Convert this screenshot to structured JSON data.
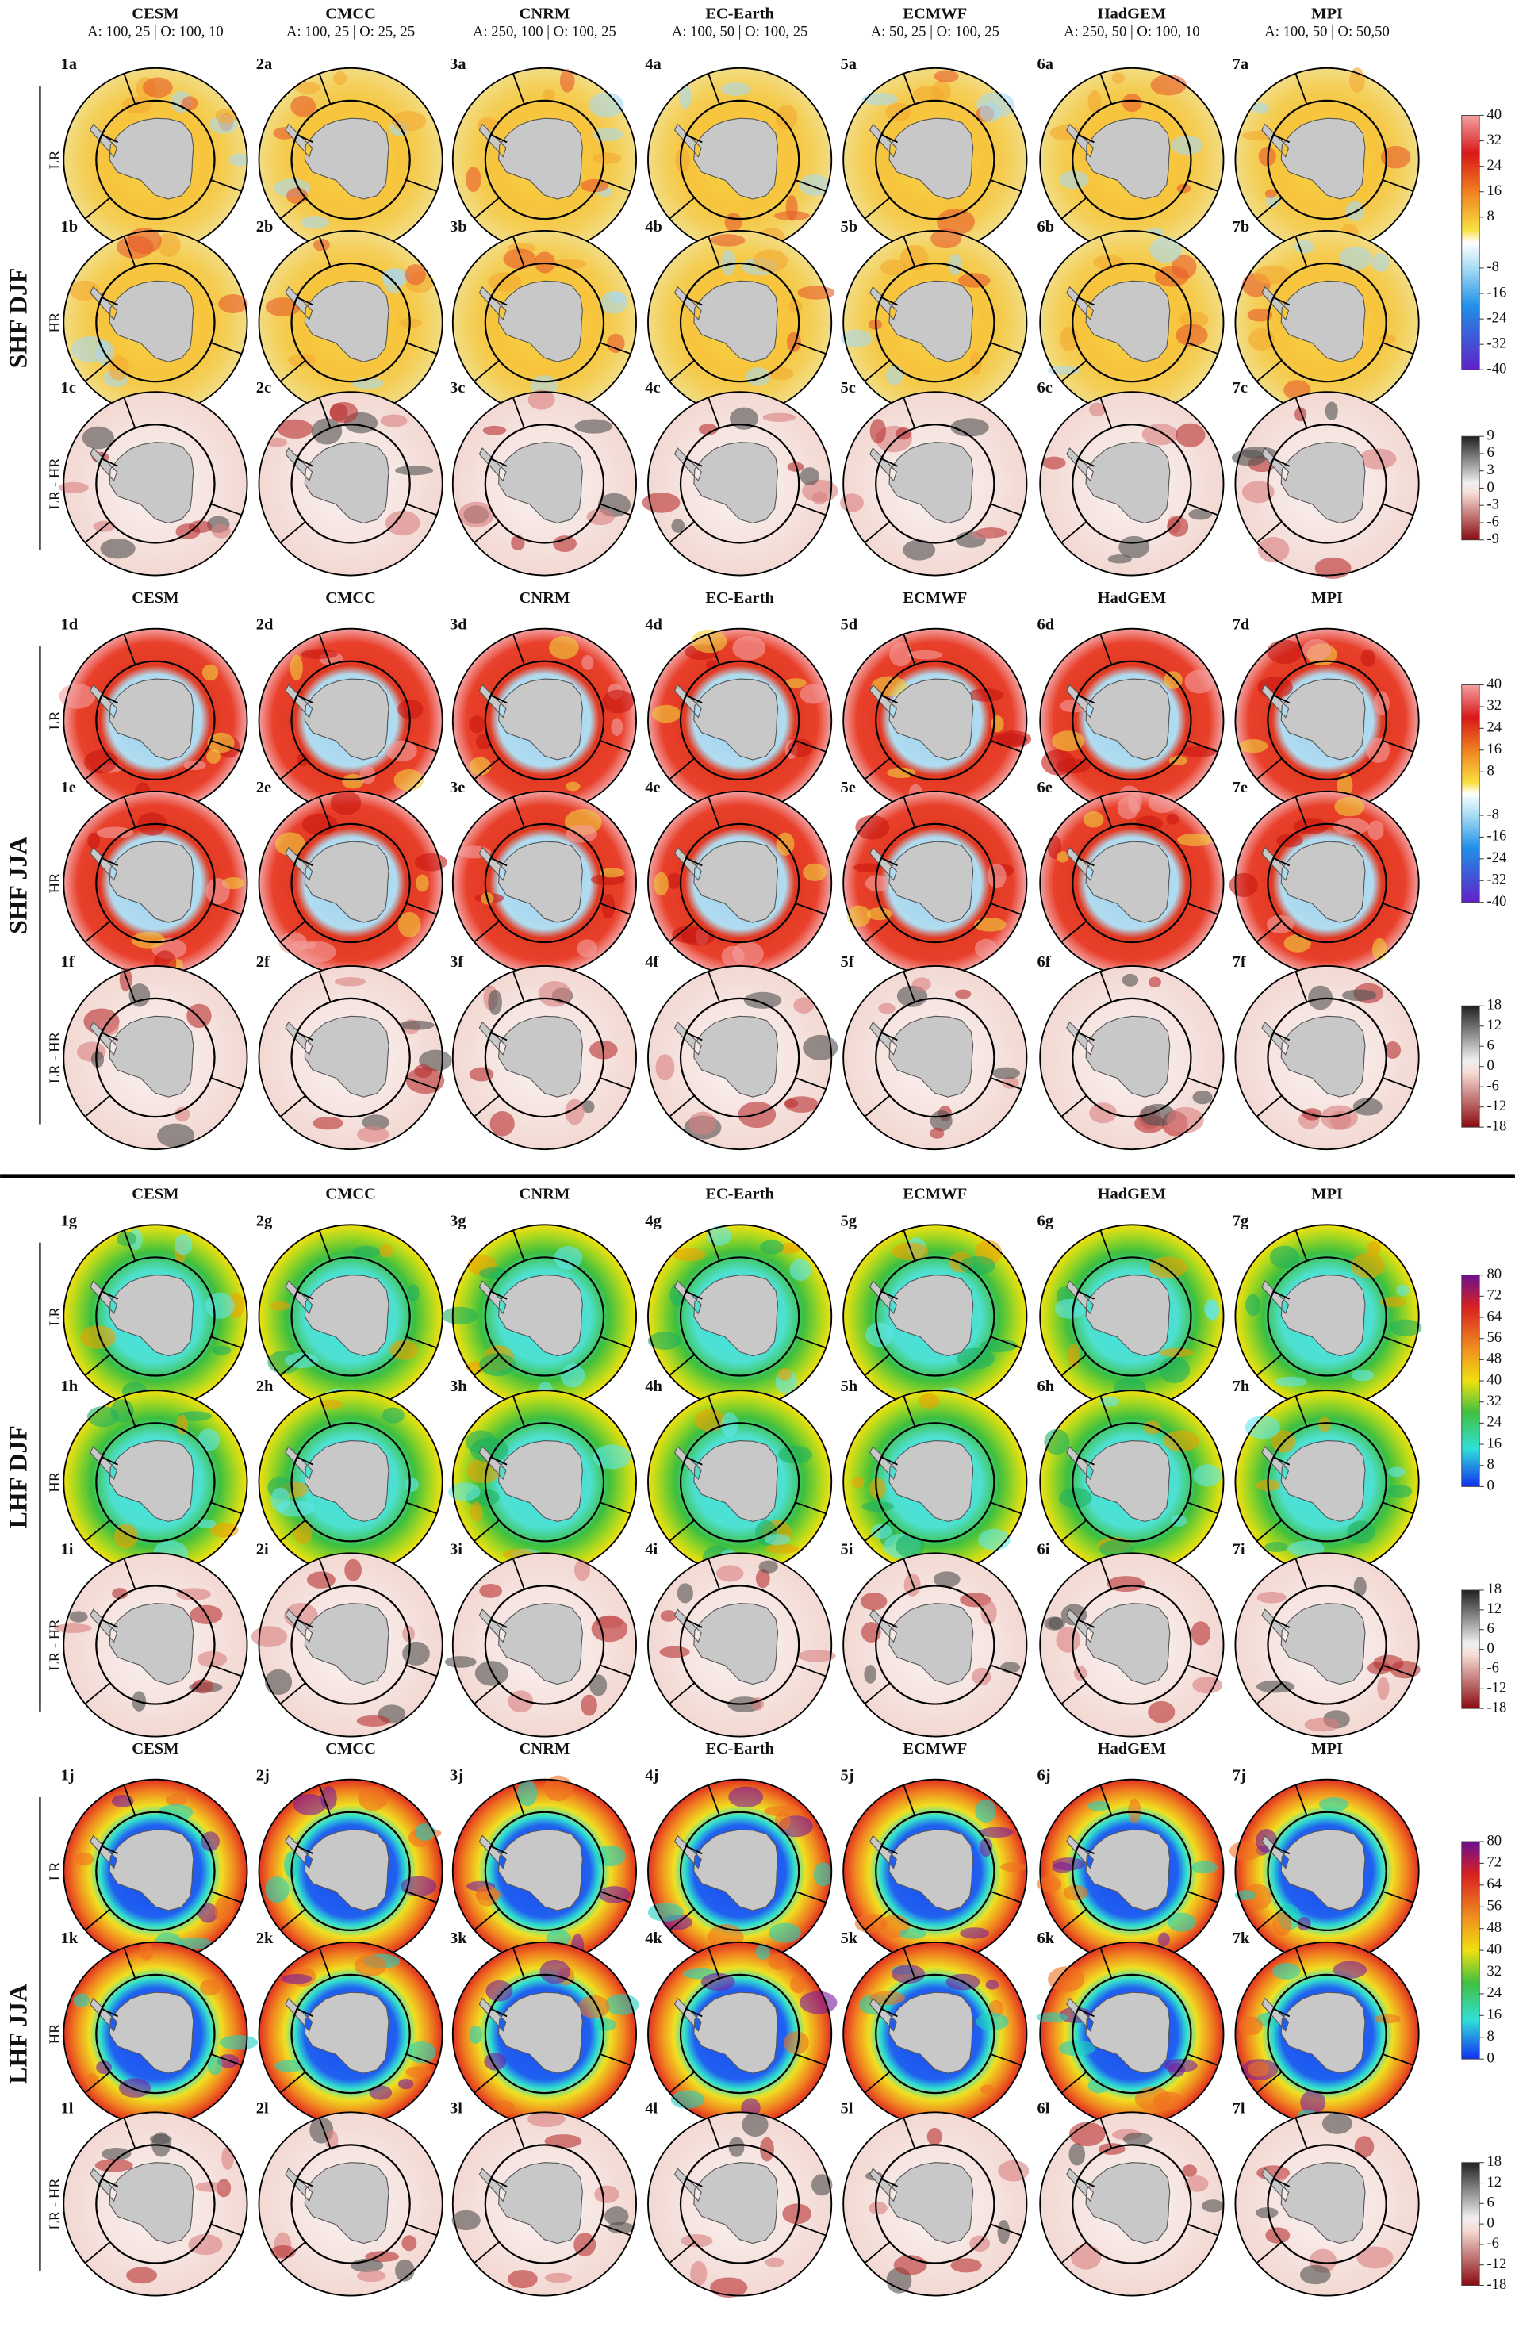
{
  "models": [
    "CESM",
    "CMCC",
    "CNRM",
    "EC-Earth",
    "ECMWF",
    "HadGEM",
    "MPI"
  ],
  "resolutions": [
    "A: 100, 25 | O: 100, 10",
    "A: 100, 25 | O: 25, 25",
    "A: 250, 100 | O: 100, 25",
    "A: 100, 50 | O: 100, 25",
    "A: 50, 25 | O: 100, 25",
    "A: 250, 50 | O: 100, 10",
    "A: 100, 50 | O: 50,50"
  ],
  "blocks": [
    {
      "label": "SHF DJF",
      "rows": [
        {
          "label": "LR",
          "panels": [
            "1a",
            "2a",
            "3a",
            "4a",
            "5a",
            "6a",
            "7a"
          ]
        },
        {
          "label": "HR",
          "panels": [
            "1b",
            "2b",
            "3b",
            "4b",
            "5b",
            "6b",
            "7b"
          ]
        },
        {
          "label": "LR - HR",
          "panels": [
            "1c",
            "2c",
            "3c",
            "4c",
            "5c",
            "6c",
            "7c"
          ]
        }
      ],
      "colorbars": [
        {
          "ticks": [
            40,
            32,
            24,
            16,
            8,
            -8,
            -16,
            -24,
            -32,
            -40
          ]
        },
        {
          "ticks": [
            9,
            6,
            3,
            0,
            -3,
            -6,
            -9
          ]
        }
      ]
    },
    {
      "label": "SHF JJA",
      "rows": [
        {
          "label": "LR",
          "panels": [
            "1d",
            "2d",
            "3d",
            "4d",
            "5d",
            "6d",
            "7d"
          ]
        },
        {
          "label": "HR",
          "panels": [
            "1e",
            "2e",
            "3e",
            "4e",
            "5e",
            "6e",
            "7e"
          ]
        },
        {
          "label": "LR - HR",
          "panels": [
            "1f",
            "2f",
            "3f",
            "4f",
            "5f",
            "6f",
            "7f"
          ]
        }
      ],
      "colorbars": [
        {
          "ticks": [
            40,
            32,
            24,
            16,
            8,
            -8,
            -16,
            -24,
            -32,
            -40
          ]
        },
        {
          "ticks": [
            18,
            12,
            6,
            0,
            -6,
            -12,
            -18
          ]
        }
      ]
    },
    {
      "label": "LHF DJF",
      "rows": [
        {
          "label": "LR",
          "panels": [
            "1g",
            "2g",
            "3g",
            "4g",
            "5g",
            "6g",
            "7g"
          ]
        },
        {
          "label": "HR",
          "panels": [
            "1h",
            "2h",
            "3h",
            "4h",
            "5h",
            "6h",
            "7h"
          ]
        },
        {
          "label": "LR - HR",
          "panels": [
            "1i",
            "2i",
            "3i",
            "4i",
            "5i",
            "6i",
            "7i"
          ]
        }
      ],
      "colorbars": [
        {
          "ticks": [
            80,
            72,
            64,
            56,
            48,
            40,
            32,
            24,
            16,
            8,
            0
          ]
        },
        {
          "ticks": [
            18,
            12,
            6,
            0,
            -6,
            -12,
            -18
          ]
        }
      ]
    },
    {
      "label": "LHF JJA",
      "rows": [
        {
          "label": "LR",
          "panels": [
            "1j",
            "2j",
            "3j",
            "4j",
            "5j",
            "6j",
            "7j"
          ]
        },
        {
          "label": "HR",
          "panels": [
            "1k",
            "2k",
            "3k",
            "4k",
            "5k",
            "6k",
            "7k"
          ]
        },
        {
          "label": "LR - HR",
          "panels": [
            "1l",
            "2l",
            "3l",
            "4l",
            "5l",
            "6l",
            "7l"
          ]
        }
      ],
      "colorbars": [
        {
          "ticks": [
            80,
            72,
            64,
            56,
            48,
            40,
            32,
            24,
            16,
            8,
            0
          ]
        },
        {
          "ticks": [
            18,
            12,
            6,
            0,
            -6,
            -12,
            -18
          ]
        }
      ]
    }
  ]
}
